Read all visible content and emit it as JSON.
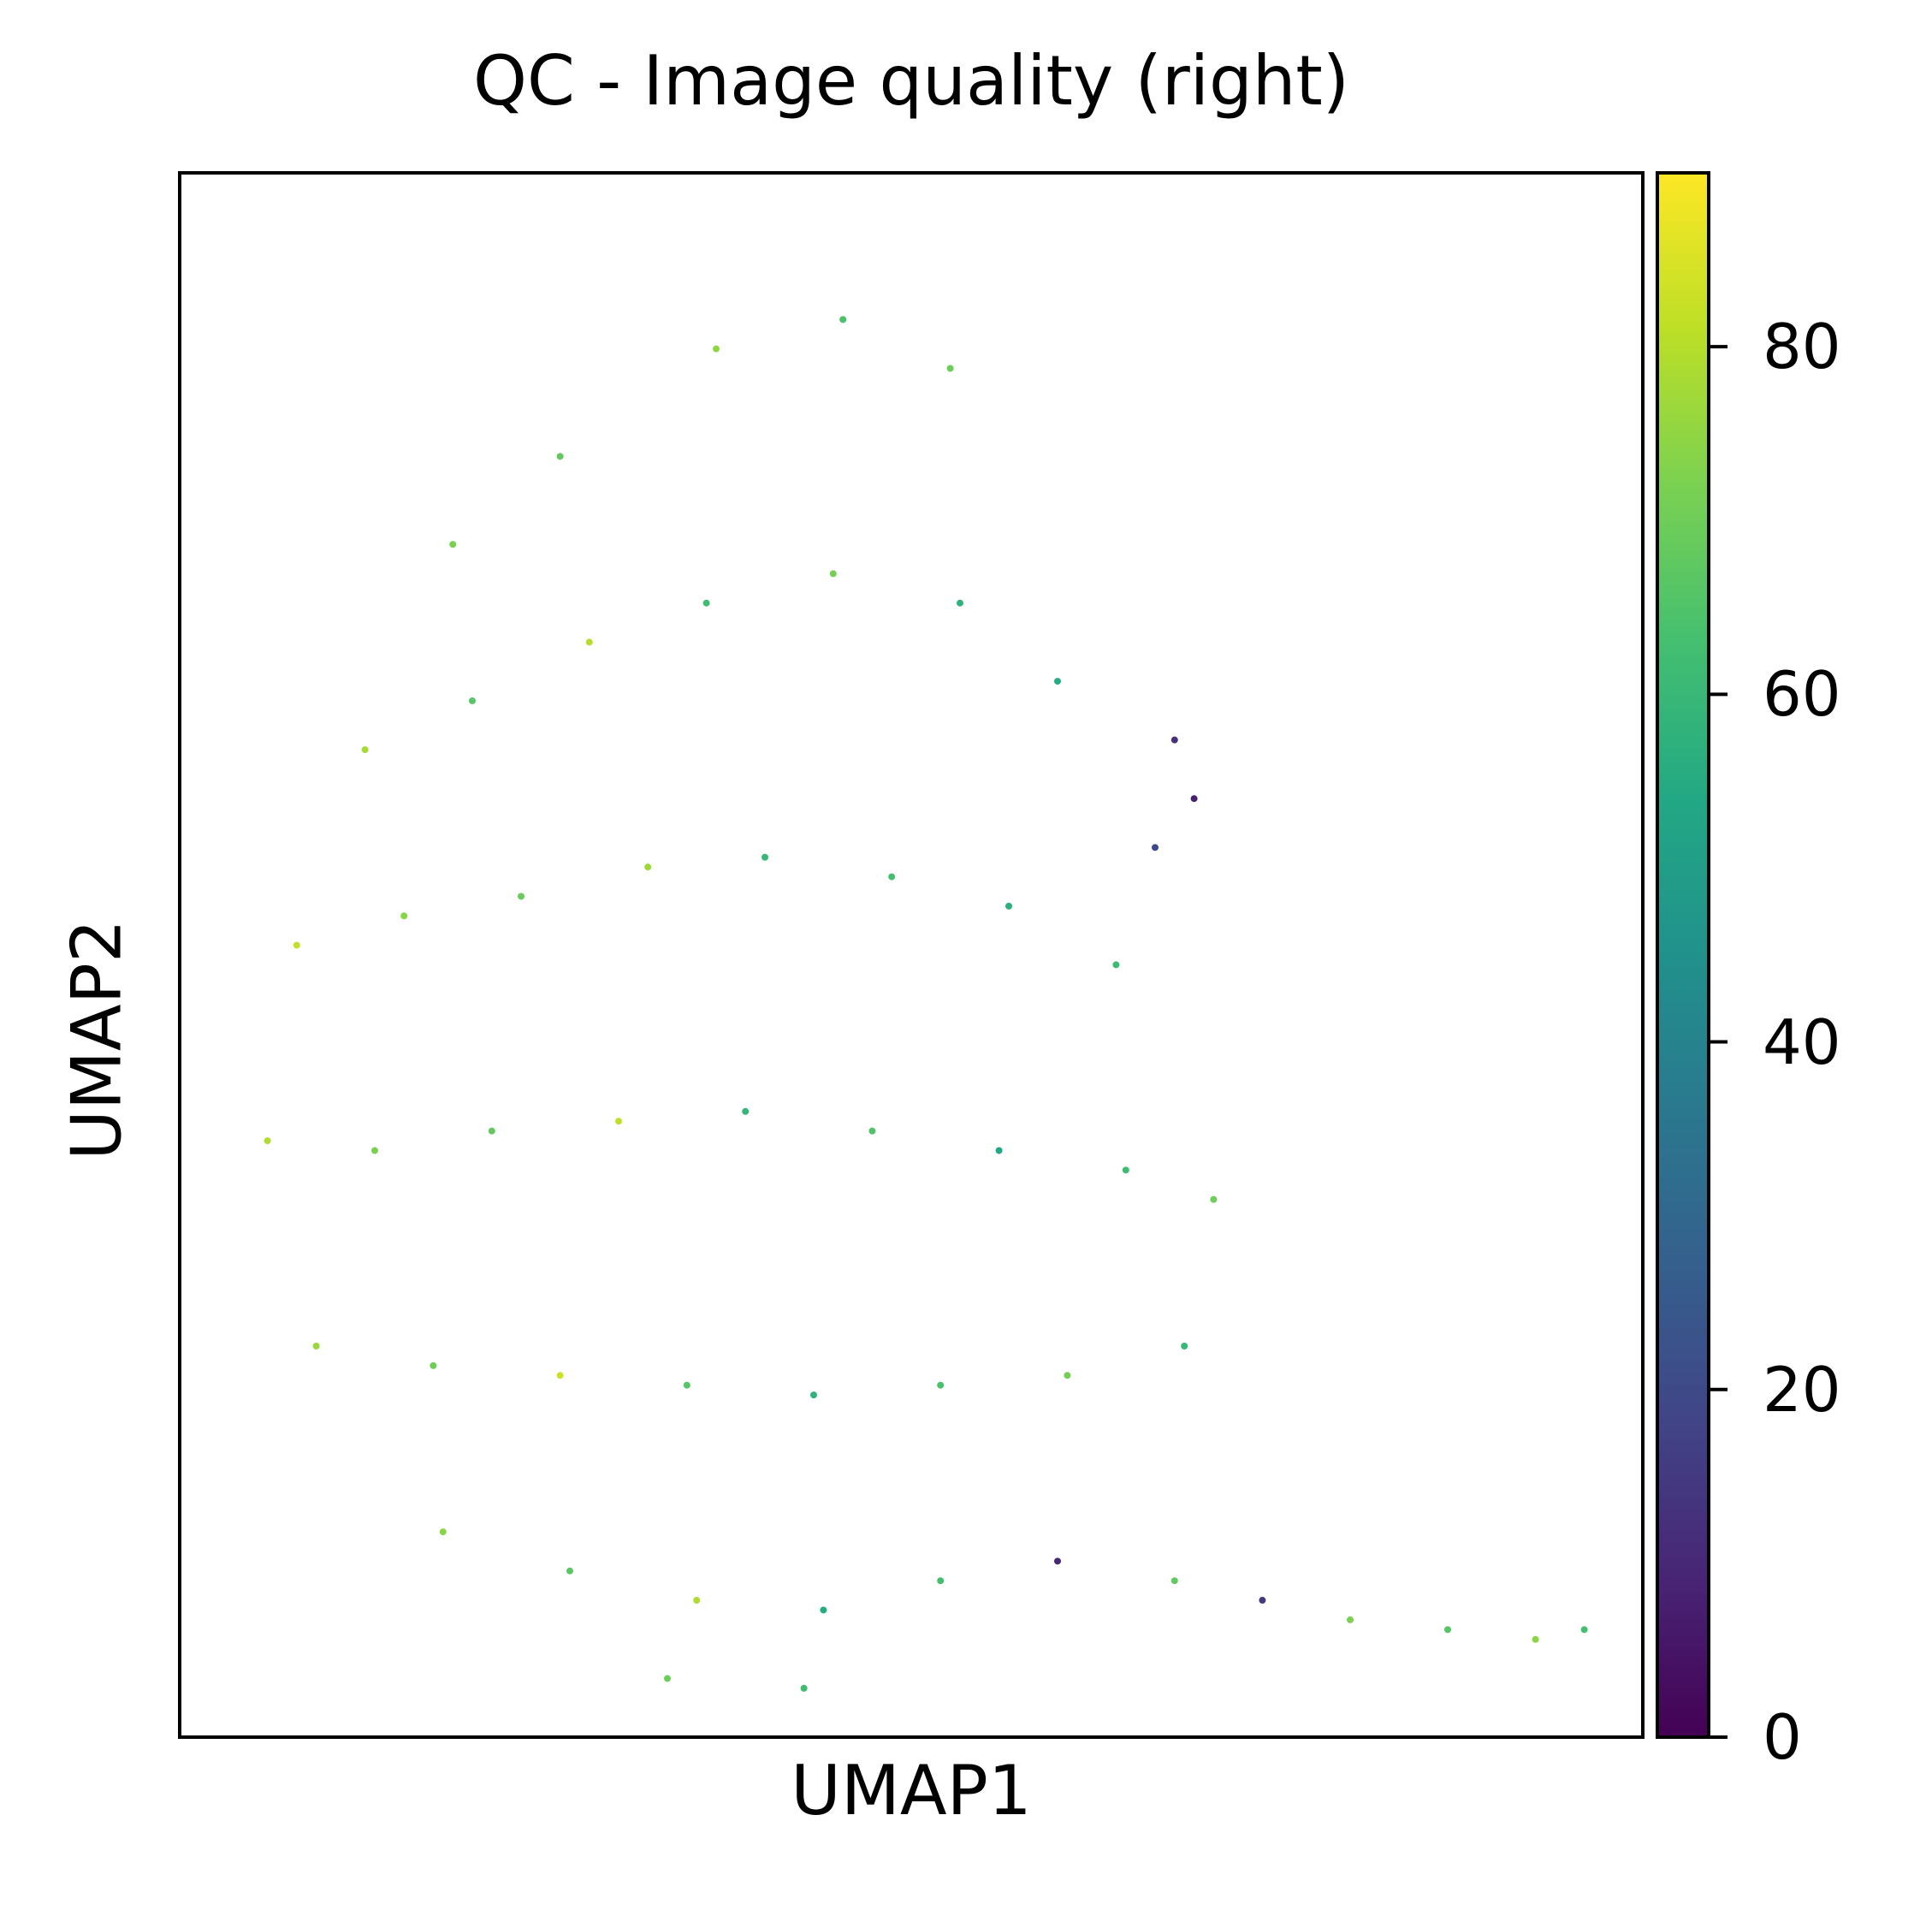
{
  "chart_data": {
    "type": "scatter",
    "title": "QC - Image quality (right)",
    "xlabel": "UMAP1",
    "ylabel": "UMAP2",
    "x_ticks_shown": false,
    "y_ticks_shown": false,
    "xlim": [
      -6.0,
      9.0
    ],
    "ylim": [
      -6.0,
      10.0
    ],
    "grid": false,
    "legend": "none",
    "colormap": "viridis",
    "colorbar": {
      "label": "",
      "range": [
        0,
        90
      ],
      "ticks": [
        0,
        20,
        40,
        60,
        80
      ],
      "tick_labels": [
        "0",
        "20",
        "40",
        "60",
        "80"
      ],
      "placement": "right"
    },
    "series": [
      {
        "description_points": "approximate cloud of cells colored by image quality value",
        "points": [
          {
            "x": -3.2,
            "y": 6.2,
            "v": 72
          },
          {
            "x": -2.1,
            "y": 7.1,
            "v": 68
          },
          {
            "x": -0.5,
            "y": 8.2,
            "v": 75
          },
          {
            "x": 0.8,
            "y": 8.5,
            "v": 64
          },
          {
            "x": 1.9,
            "y": 8.0,
            "v": 70
          },
          {
            "x": -4.1,
            "y": 4.1,
            "v": 78
          },
          {
            "x": -3.0,
            "y": 4.6,
            "v": 66
          },
          {
            "x": -1.8,
            "y": 5.2,
            "v": 80
          },
          {
            "x": -0.6,
            "y": 5.6,
            "v": 62
          },
          {
            "x": 0.7,
            "y": 5.9,
            "v": 71
          },
          {
            "x": 2.0,
            "y": 5.6,
            "v": 58
          },
          {
            "x": 3.0,
            "y": 4.8,
            "v": 55
          },
          {
            "x": 4.2,
            "y": 4.2,
            "v": 12
          },
          {
            "x": 4.4,
            "y": 3.6,
            "v": 8
          },
          {
            "x": 4.0,
            "y": 3.1,
            "v": 20
          },
          {
            "x": -4.8,
            "y": 2.1,
            "v": 82
          },
          {
            "x": -3.7,
            "y": 2.4,
            "v": 74
          },
          {
            "x": -2.5,
            "y": 2.6,
            "v": 69
          },
          {
            "x": -1.2,
            "y": 2.9,
            "v": 77
          },
          {
            "x": 0.0,
            "y": 3.0,
            "v": 60
          },
          {
            "x": 1.3,
            "y": 2.8,
            "v": 63
          },
          {
            "x": 2.5,
            "y": 2.5,
            "v": 57
          },
          {
            "x": 3.6,
            "y": 1.9,
            "v": 61
          },
          {
            "x": -5.1,
            "y": 0.1,
            "v": 79
          },
          {
            "x": -4.0,
            "y": 0.0,
            "v": 72
          },
          {
            "x": -2.8,
            "y": 0.2,
            "v": 68
          },
          {
            "x": -1.5,
            "y": 0.3,
            "v": 81
          },
          {
            "x": -0.2,
            "y": 0.4,
            "v": 59
          },
          {
            "x": 1.1,
            "y": 0.2,
            "v": 65
          },
          {
            "x": 2.4,
            "y": 0.0,
            "v": 54
          },
          {
            "x": 3.7,
            "y": -0.2,
            "v": 62
          },
          {
            "x": 4.6,
            "y": -0.5,
            "v": 70
          },
          {
            "x": -4.6,
            "y": -2.0,
            "v": 76
          },
          {
            "x": -3.4,
            "y": -2.2,
            "v": 70
          },
          {
            "x": -2.1,
            "y": -2.3,
            "v": 83
          },
          {
            "x": -0.8,
            "y": -2.4,
            "v": 66
          },
          {
            "x": 0.5,
            "y": -2.5,
            "v": 58
          },
          {
            "x": 1.8,
            "y": -2.4,
            "v": 64
          },
          {
            "x": 3.1,
            "y": -2.3,
            "v": 71
          },
          {
            "x": 4.3,
            "y": -2.0,
            "v": 60
          },
          {
            "x": -3.3,
            "y": -3.9,
            "v": 74
          },
          {
            "x": -2.0,
            "y": -4.3,
            "v": 67
          },
          {
            "x": -0.7,
            "y": -4.6,
            "v": 79
          },
          {
            "x": 0.6,
            "y": -4.7,
            "v": 55
          },
          {
            "x": 1.8,
            "y": -4.4,
            "v": 63
          },
          {
            "x": 3.0,
            "y": -4.2,
            "v": 10
          },
          {
            "x": 4.2,
            "y": -4.4,
            "v": 68
          },
          {
            "x": 5.1,
            "y": -4.6,
            "v": 15
          },
          {
            "x": 6.0,
            "y": -4.8,
            "v": 72
          },
          {
            "x": 7.0,
            "y": -4.9,
            "v": 66
          },
          {
            "x": 7.9,
            "y": -5.0,
            "v": 74
          },
          {
            "x": 8.4,
            "y": -4.9,
            "v": 63
          },
          {
            "x": -1.0,
            "y": -5.4,
            "v": 70
          },
          {
            "x": 0.4,
            "y": -5.5,
            "v": 62
          }
        ]
      }
    ]
  }
}
